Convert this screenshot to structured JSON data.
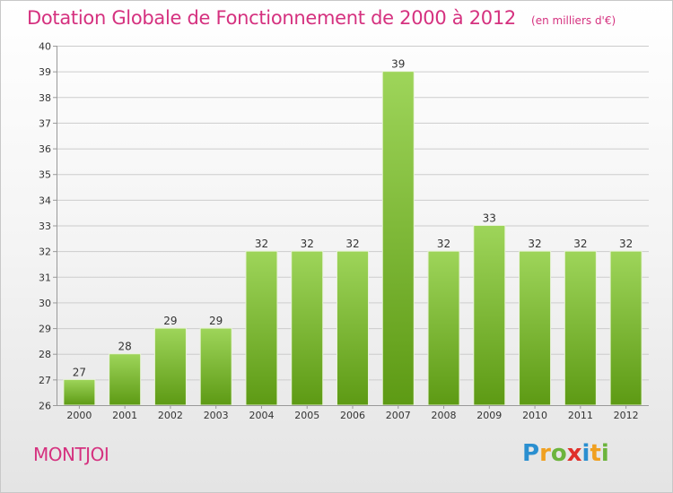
{
  "title": "Dotation Globale de Fonctionnement de 2000 à 2012",
  "subtitle": "(en milliers d'€)",
  "commune": "MONTJOI",
  "logo": {
    "letters": [
      "P",
      "r",
      "o",
      "x",
      "i",
      "t",
      "i"
    ],
    "colors": [
      "#2a8fd0",
      "#f0a020",
      "#6cb43c",
      "#e0302a",
      "#2a8fd0",
      "#f0a020",
      "#6cb43c"
    ]
  },
  "colors": {
    "title": "#d5317f",
    "bar_top": "#9ed55a",
    "bar_bottom": "#5d9a14",
    "grid": "#cccccc",
    "axis_text": "#333333"
  },
  "chart_data": {
    "type": "bar",
    "categories": [
      "2000",
      "2001",
      "2002",
      "2003",
      "2004",
      "2005",
      "2006",
      "2007",
      "2008",
      "2009",
      "2010",
      "2011",
      "2012"
    ],
    "values": [
      27,
      28,
      29,
      29,
      32,
      32,
      32,
      39,
      32,
      33,
      32,
      32,
      32
    ],
    "data_labels": [
      "27",
      "28",
      "29",
      "29",
      "32",
      "32",
      "32",
      "39",
      "32",
      "33",
      "32",
      "32",
      "32"
    ],
    "y_ticks": [
      "26",
      "27",
      "28",
      "29",
      "30",
      "31",
      "32",
      "33",
      "34",
      "35",
      "36",
      "37",
      "38",
      "39",
      "40"
    ],
    "title": "Dotation Globale de Fonctionnement de 2000 à 2012",
    "subtitle": "(en milliers d'€)",
    "xlabel": "",
    "ylabel": "",
    "ylim": [
      26,
      40
    ],
    "grid": true,
    "legend": "none"
  }
}
